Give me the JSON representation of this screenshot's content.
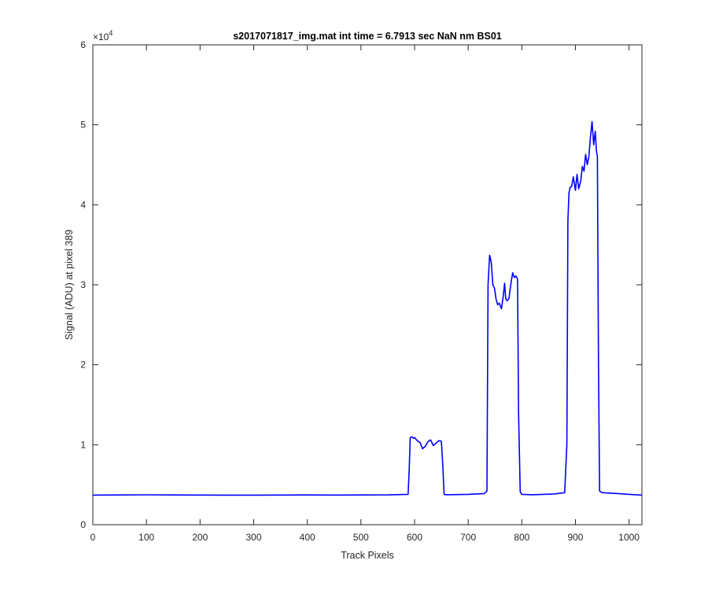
{
  "chart_data": {
    "type": "line",
    "title": "s2017071817_img.mat int time = 6.7913 sec  NaN nm BS01",
    "xlabel": "Track Pixels",
    "ylabel": "Signal (ADU) at pixel 389",
    "xlim": [
      0,
      1024
    ],
    "ylim": [
      0,
      60000
    ],
    "xticks": [
      0,
      100,
      200,
      300,
      400,
      500,
      600,
      700,
      800,
      900,
      1000
    ],
    "xtick_labels": [
      "0",
      "100",
      "200",
      "300",
      "400",
      "500",
      "600",
      "700",
      "800",
      "900",
      "1000"
    ],
    "yticks": [
      0,
      10000,
      20000,
      30000,
      40000,
      50000,
      60000
    ],
    "ytick_labels": [
      "0",
      "1",
      "2",
      "3",
      "4",
      "5",
      "6"
    ],
    "y_exponent": {
      "base": "×10",
      "power": "4"
    },
    "grid": false,
    "line_color": "#0000ff",
    "series": [
      {
        "values_x": [
          0,
          50,
          100,
          150,
          200,
          250,
          300,
          350,
          400,
          450,
          500,
          550,
          588,
          590,
          592,
          595,
          598,
          600,
          605,
          610,
          615,
          620,
          625,
          630,
          635,
          640,
          645,
          648,
          650,
          653,
          655,
          660,
          700,
          730,
          735,
          737,
          740,
          743,
          746,
          749,
          752,
          755,
          758,
          762,
          765,
          768,
          770,
          773,
          776,
          780,
          783,
          786,
          789,
          792,
          794,
          797,
          800,
          820,
          860,
          880,
          884,
          886,
          888,
          890,
          893,
          896,
          900,
          903,
          906,
          910,
          913,
          916,
          919,
          922,
          925,
          928,
          931,
          934,
          937,
          939,
          941,
          943,
          945,
          950,
          980,
          1000,
          1024
        ],
        "values_y": [
          3700,
          3720,
          3740,
          3720,
          3710,
          3700,
          3700,
          3710,
          3720,
          3710,
          3720,
          3730,
          3800,
          7000,
          10900,
          11000,
          10800,
          10900,
          10500,
          10300,
          9500,
          9800,
          10400,
          10600,
          9900,
          10200,
          10500,
          10500,
          10400,
          7000,
          3800,
          3750,
          3800,
          3900,
          4200,
          30000,
          33700,
          32800,
          30000,
          29600,
          28200,
          27500,
          27700,
          27000,
          28400,
          30200,
          28200,
          28000,
          28300,
          30300,
          31500,
          30900,
          31100,
          30700,
          14000,
          4100,
          3800,
          3750,
          3850,
          4000,
          10000,
          38000,
          41500,
          42200,
          42300,
          43500,
          41800,
          43800,
          42000,
          43000,
          44800,
          44200,
          46300,
          45000,
          46000,
          48500,
          50400,
          47500,
          49200,
          46800,
          46000,
          20000,
          4200,
          4000,
          3900,
          3800,
          3700
        ]
      }
    ]
  }
}
